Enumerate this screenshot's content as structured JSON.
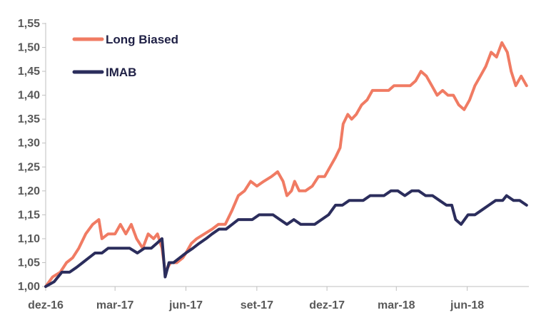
{
  "chart_data": {
    "type": "line",
    "title": "",
    "xlabel": "",
    "ylabel": "",
    "ylim": [
      1.0,
      1.55
    ],
    "yticks": [
      1.0,
      1.05,
      1.1,
      1.15,
      1.2,
      1.25,
      1.3,
      1.35,
      1.4,
      1.45,
      1.5,
      1.55
    ],
    "ytick_labels": [
      "1,00",
      "1,05",
      "1,10",
      "1,15",
      "1,20",
      "1,25",
      "1,30",
      "1,35",
      "1,40",
      "1,45",
      "1,50",
      "1,55"
    ],
    "x_range": [
      "2016-12-01",
      "2018-08-20"
    ],
    "xticks": [
      "2016-12-01",
      "2017-03-01",
      "2017-06-01",
      "2017-09-01",
      "2017-12-01",
      "2018-03-01",
      "2018-06-01"
    ],
    "xtick_labels": [
      "dez-16",
      "mar-17",
      "jun-17",
      "set-17",
      "dez-17",
      "mar-18",
      "jun-18"
    ],
    "grid": false,
    "legend_position": "top-left",
    "series": [
      {
        "name": "Long Biased",
        "color": "#f07b63",
        "points": [
          [
            "2016-12-01",
            1.0
          ],
          [
            "2016-12-10",
            1.02
          ],
          [
            "2016-12-20",
            1.03
          ],
          [
            "2016-12-28",
            1.05
          ],
          [
            "2017-01-05",
            1.06
          ],
          [
            "2017-01-13",
            1.08
          ],
          [
            "2017-01-22",
            1.11
          ],
          [
            "2017-01-31",
            1.13
          ],
          [
            "2017-02-08",
            1.14
          ],
          [
            "2017-02-12",
            1.1
          ],
          [
            "2017-02-20",
            1.11
          ],
          [
            "2017-03-01",
            1.11
          ],
          [
            "2017-03-08",
            1.13
          ],
          [
            "2017-03-15",
            1.11
          ],
          [
            "2017-03-22",
            1.13
          ],
          [
            "2017-03-29",
            1.1
          ],
          [
            "2017-04-06",
            1.08
          ],
          [
            "2017-04-13",
            1.11
          ],
          [
            "2017-04-20",
            1.1
          ],
          [
            "2017-04-25",
            1.11
          ],
          [
            "2017-05-01",
            1.08
          ],
          [
            "2017-05-05",
            1.03
          ],
          [
            "2017-05-12",
            1.05
          ],
          [
            "2017-05-20",
            1.05
          ],
          [
            "2017-05-28",
            1.06
          ],
          [
            "2017-06-01",
            1.07
          ],
          [
            "2017-06-08",
            1.09
          ],
          [
            "2017-06-15",
            1.1
          ],
          [
            "2017-06-25",
            1.11
          ],
          [
            "2017-07-05",
            1.12
          ],
          [
            "2017-07-13",
            1.13
          ],
          [
            "2017-07-22",
            1.13
          ],
          [
            "2017-07-31",
            1.16
          ],
          [
            "2017-08-08",
            1.19
          ],
          [
            "2017-08-16",
            1.2
          ],
          [
            "2017-08-24",
            1.22
          ],
          [
            "2017-09-01",
            1.21
          ],
          [
            "2017-09-10",
            1.22
          ],
          [
            "2017-09-20",
            1.23
          ],
          [
            "2017-09-28",
            1.24
          ],
          [
            "2017-10-05",
            1.22
          ],
          [
            "2017-10-10",
            1.19
          ],
          [
            "2017-10-16",
            1.2
          ],
          [
            "2017-10-20",
            1.22
          ],
          [
            "2017-10-26",
            1.2
          ],
          [
            "2017-11-03",
            1.2
          ],
          [
            "2017-11-12",
            1.21
          ],
          [
            "2017-11-20",
            1.23
          ],
          [
            "2017-11-28",
            1.23
          ],
          [
            "2017-12-05",
            1.25
          ],
          [
            "2017-12-12",
            1.27
          ],
          [
            "2017-12-18",
            1.29
          ],
          [
            "2017-12-22",
            1.34
          ],
          [
            "2017-12-28",
            1.36
          ],
          [
            "2018-01-02",
            1.35
          ],
          [
            "2018-01-08",
            1.36
          ],
          [
            "2018-01-15",
            1.38
          ],
          [
            "2018-01-22",
            1.39
          ],
          [
            "2018-01-29",
            1.41
          ],
          [
            "2018-02-05",
            1.41
          ],
          [
            "2018-02-12",
            1.41
          ],
          [
            "2018-02-19",
            1.41
          ],
          [
            "2018-02-26",
            1.42
          ],
          [
            "2018-03-05",
            1.42
          ],
          [
            "2018-03-12",
            1.42
          ],
          [
            "2018-03-19",
            1.42
          ],
          [
            "2018-03-26",
            1.43
          ],
          [
            "2018-04-02",
            1.45
          ],
          [
            "2018-04-09",
            1.44
          ],
          [
            "2018-04-16",
            1.42
          ],
          [
            "2018-04-23",
            1.4
          ],
          [
            "2018-04-30",
            1.41
          ],
          [
            "2018-05-07",
            1.4
          ],
          [
            "2018-05-14",
            1.4
          ],
          [
            "2018-05-21",
            1.38
          ],
          [
            "2018-05-28",
            1.37
          ],
          [
            "2018-06-04",
            1.39
          ],
          [
            "2018-06-11",
            1.42
          ],
          [
            "2018-06-18",
            1.44
          ],
          [
            "2018-06-25",
            1.46
          ],
          [
            "2018-07-02",
            1.49
          ],
          [
            "2018-07-09",
            1.48
          ],
          [
            "2018-07-16",
            1.51
          ],
          [
            "2018-07-23",
            1.49
          ],
          [
            "2018-07-28",
            1.45
          ],
          [
            "2018-08-03",
            1.42
          ],
          [
            "2018-08-10",
            1.44
          ],
          [
            "2018-08-17",
            1.42
          ]
        ]
      },
      {
        "name": "IMAB",
        "color": "#2b2d5c",
        "points": [
          [
            "2016-12-01",
            1.0
          ],
          [
            "2016-12-12",
            1.01
          ],
          [
            "2016-12-22",
            1.03
          ],
          [
            "2017-01-01",
            1.03
          ],
          [
            "2017-01-10",
            1.04
          ],
          [
            "2017-01-18",
            1.05
          ],
          [
            "2017-01-26",
            1.06
          ],
          [
            "2017-02-03",
            1.07
          ],
          [
            "2017-02-12",
            1.07
          ],
          [
            "2017-02-20",
            1.08
          ],
          [
            "2017-03-01",
            1.08
          ],
          [
            "2017-03-10",
            1.08
          ],
          [
            "2017-03-20",
            1.08
          ],
          [
            "2017-03-30",
            1.07
          ],
          [
            "2017-04-08",
            1.08
          ],
          [
            "2017-04-17",
            1.08
          ],
          [
            "2017-04-24",
            1.09
          ],
          [
            "2017-05-01",
            1.1
          ],
          [
            "2017-05-05",
            1.02
          ],
          [
            "2017-05-10",
            1.05
          ],
          [
            "2017-05-16",
            1.05
          ],
          [
            "2017-05-24",
            1.06
          ],
          [
            "2017-06-01",
            1.07
          ],
          [
            "2017-06-10",
            1.08
          ],
          [
            "2017-06-18",
            1.09
          ],
          [
            "2017-06-27",
            1.1
          ],
          [
            "2017-07-05",
            1.11
          ],
          [
            "2017-07-14",
            1.12
          ],
          [
            "2017-07-23",
            1.12
          ],
          [
            "2017-07-31",
            1.13
          ],
          [
            "2017-08-08",
            1.14
          ],
          [
            "2017-08-17",
            1.14
          ],
          [
            "2017-08-26",
            1.14
          ],
          [
            "2017-09-04",
            1.15
          ],
          [
            "2017-09-13",
            1.15
          ],
          [
            "2017-09-22",
            1.15
          ],
          [
            "2017-10-01",
            1.14
          ],
          [
            "2017-10-10",
            1.13
          ],
          [
            "2017-10-19",
            1.14
          ],
          [
            "2017-10-28",
            1.13
          ],
          [
            "2017-11-06",
            1.13
          ],
          [
            "2017-11-15",
            1.13
          ],
          [
            "2017-11-24",
            1.14
          ],
          [
            "2017-12-03",
            1.15
          ],
          [
            "2017-12-12",
            1.17
          ],
          [
            "2017-12-21",
            1.17
          ],
          [
            "2017-12-30",
            1.18
          ],
          [
            "2018-01-08",
            1.18
          ],
          [
            "2018-01-17",
            1.18
          ],
          [
            "2018-01-26",
            1.19
          ],
          [
            "2018-02-04",
            1.19
          ],
          [
            "2018-02-13",
            1.19
          ],
          [
            "2018-02-22",
            1.2
          ],
          [
            "2018-03-03",
            1.2
          ],
          [
            "2018-03-12",
            1.19
          ],
          [
            "2018-03-21",
            1.2
          ],
          [
            "2018-03-30",
            1.2
          ],
          [
            "2018-04-08",
            1.19
          ],
          [
            "2018-04-17",
            1.19
          ],
          [
            "2018-04-26",
            1.18
          ],
          [
            "2018-05-05",
            1.17
          ],
          [
            "2018-05-12",
            1.17
          ],
          [
            "2018-05-17",
            1.14
          ],
          [
            "2018-05-24",
            1.13
          ],
          [
            "2018-06-02",
            1.15
          ],
          [
            "2018-06-11",
            1.15
          ],
          [
            "2018-06-20",
            1.16
          ],
          [
            "2018-06-29",
            1.17
          ],
          [
            "2018-07-08",
            1.18
          ],
          [
            "2018-07-17",
            1.18
          ],
          [
            "2018-07-22",
            1.19
          ],
          [
            "2018-07-31",
            1.18
          ],
          [
            "2018-08-08",
            1.18
          ],
          [
            "2018-08-17",
            1.17
          ]
        ]
      }
    ]
  }
}
